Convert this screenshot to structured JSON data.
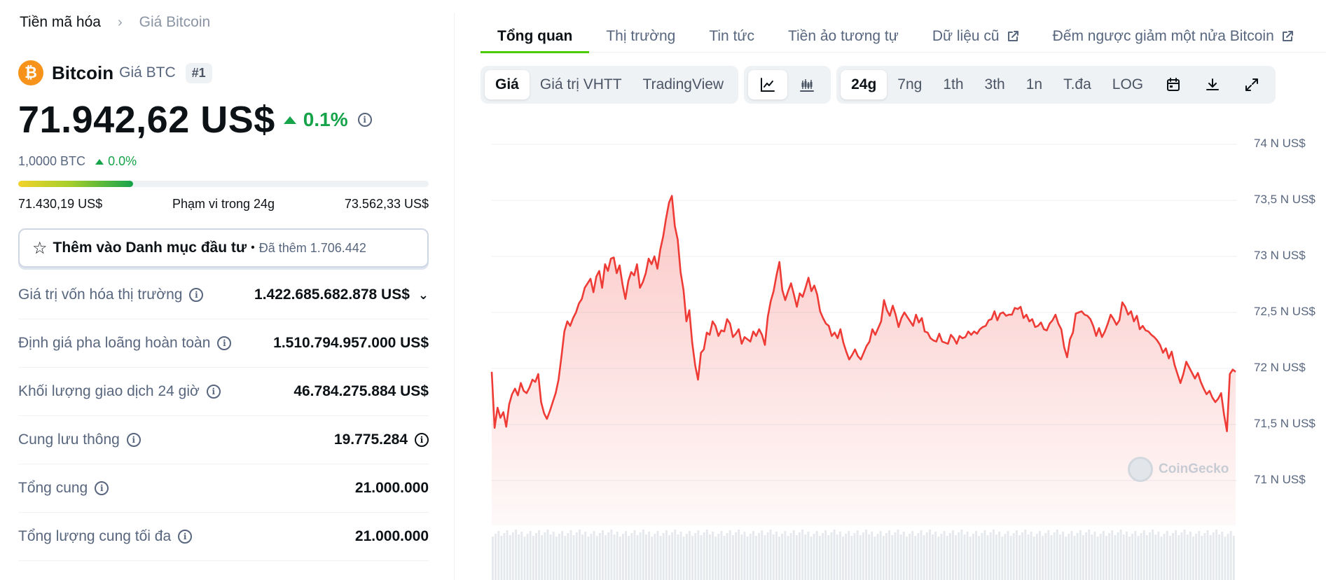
{
  "breadcrumb": {
    "root": "Tiền mã hóa",
    "current": "Giá Bitcoin"
  },
  "coin": {
    "name": "Bitcoin",
    "symbol_label": "Giá BTC",
    "rank": "#1",
    "logo_glyph": "₿",
    "logo_color": "#f7931a"
  },
  "price": {
    "value": "71.942,62 US$",
    "change": "0.1%",
    "btc_value": "1,0000 BTC",
    "btc_change": "0.0%"
  },
  "range_24h": {
    "low": "71.430,19 US$",
    "label": "Phạm vi trong 24g",
    "high": "73.562,33 US$",
    "position_fraction": 0.28
  },
  "watchlist": {
    "label": "Thêm vào Danh mục đầu tư",
    "separator": "•",
    "count": "Đã thêm 1.706.442"
  },
  "stats": [
    {
      "label": "Giá trị vốn hóa thị trường",
      "value": "1.422.685.682.878 US$",
      "suffix": "chevron-down-icon"
    },
    {
      "label": "Định giá pha loãng hoàn toàn",
      "value": "1.510.794.957.000 US$"
    },
    {
      "label": "Khối lượng giao dịch 24 giờ",
      "value": "46.784.275.884 US$"
    },
    {
      "label": "Cung lưu thông",
      "value": "19.775.284",
      "suffix": "info-icon"
    },
    {
      "label": "Tổng cung",
      "value": "21.000.000"
    },
    {
      "label": "Tổng lượng cung tối đa",
      "value": "21.000.000"
    }
  ],
  "tabs": [
    {
      "label": "Tổng quan",
      "active": true
    },
    {
      "label": "Thị trường"
    },
    {
      "label": "Tin tức"
    },
    {
      "label": "Tiền ảo tương tự"
    },
    {
      "label": "Dữ liệu cũ",
      "external": true
    },
    {
      "label": "Đếm ngược giảm một nửa Bitcoin",
      "external": true
    }
  ],
  "toolbar": {
    "metric": [
      "Giá",
      "Giá trị VHTT",
      "TradingView"
    ],
    "chart_type_icons": [
      "line-chart-icon",
      "candlestick-chart-icon"
    ],
    "ranges": [
      "24g",
      "7ng",
      "1th",
      "3th",
      "1n",
      "T.đa",
      "LOG"
    ],
    "action_icons": [
      "calendar-icon",
      "download-icon",
      "fullscreen-icon"
    ]
  },
  "colors": {
    "accent_green": "#4bcc00",
    "up_green": "#16a34a",
    "line_red": "#ef3b36",
    "text_muted": "#58667e"
  },
  "watermark": "CoinGecko",
  "chart_data": {
    "type": "area",
    "title": "",
    "xlabel": "",
    "ylabel": "",
    "ylim": [
      70800,
      74100
    ],
    "y_ticks": [
      71000,
      71500,
      72000,
      72500,
      73000,
      73500,
      74000
    ],
    "y_tick_labels": [
      "71 N US$",
      "71,5 N US$",
      "72 N US$",
      "72,5 N US$",
      "73 N US$",
      "73,5 N US$",
      "74 N US$"
    ],
    "grid": true,
    "series": [
      {
        "values": [
          71970,
          71470,
          71650,
          71560,
          71610,
          71480,
          71680,
          71770,
          71820,
          71760,
          71870,
          71800,
          71780,
          71830,
          71900,
          71880,
          71950,
          71700,
          71600,
          71550,
          71620,
          71700,
          71780,
          71900,
          72110,
          72330,
          72420,
          72380,
          72450,
          72500,
          72580,
          72620,
          72720,
          72760,
          72800,
          72680,
          72820,
          72870,
          72720,
          72930,
          72870,
          72980,
          72990,
          72850,
          72920,
          72750,
          72620,
          72780,
          72860,
          72830,
          72930,
          72720,
          72770,
          72850,
          72980,
          72930,
          73000,
          72890,
          73060,
          73180,
          73340,
          73480,
          73540,
          73270,
          73150,
          72860,
          72700,
          72420,
          72520,
          72230,
          72030,
          71900,
          72140,
          72170,
          72320,
          72300,
          72420,
          72380,
          72290,
          72340,
          72330,
          72440,
          72400,
          72280,
          72310,
          72350,
          72220,
          72280,
          72260,
          72240,
          72330,
          72290,
          72350,
          72300,
          72210,
          72460,
          72600,
          72690,
          72830,
          72950,
          72700,
          72610,
          72690,
          72760,
          72660,
          72550,
          72670,
          72640,
          72720,
          72810,
          72690,
          72740,
          72660,
          72510,
          72450,
          72400,
          72380,
          72290,
          72320,
          72270,
          72350,
          72230,
          72150,
          72080,
          72120,
          72170,
          72110,
          72080,
          72140,
          72200,
          72240,
          72350,
          72300,
          72360,
          72420,
          72610,
          72520,
          72470,
          72560,
          72480,
          72370,
          72450,
          72500,
          72460,
          72420,
          72380,
          72480,
          72410,
          72450,
          72330,
          72320,
          72270,
          72250,
          72240,
          72310,
          72240,
          72230,
          72220,
          72300,
          72270,
          72220,
          72290,
          72270,
          72280,
          72330,
          72300,
          72330,
          72310,
          72350,
          72370,
          72380,
          72430,
          72440,
          72510,
          72430,
          72490,
          72500,
          72470,
          72480,
          72480,
          72540,
          72530,
          72550,
          72450,
          72480,
          72420,
          72440,
          72370,
          72380,
          72410,
          72350,
          72340,
          72400,
          72430,
          72480,
          72400,
          72350,
          72190,
          72100,
          72260,
          72320,
          72490,
          72500,
          72510,
          72480,
          72470,
          72440,
          72380,
          72290,
          72360,
          72280,
          72330,
          72400,
          72480,
          72440,
          72390,
          72430,
          72590,
          72550,
          72480,
          72510,
          72420,
          72470,
          72350,
          72380,
          72340,
          72330,
          72300,
          72280,
          72250,
          72210,
          72140,
          72180,
          72090,
          72150,
          72030,
          71950,
          71870,
          71950,
          72060,
          72010,
          71960,
          71910,
          71960,
          71880,
          71820,
          71770,
          71800,
          71740,
          71700,
          71730,
          71780,
          71590,
          71440,
          71950,
          71990,
          71970
        ]
      }
    ],
    "volume": {
      "present": true,
      "note_values_unlabeled": true
    }
  }
}
